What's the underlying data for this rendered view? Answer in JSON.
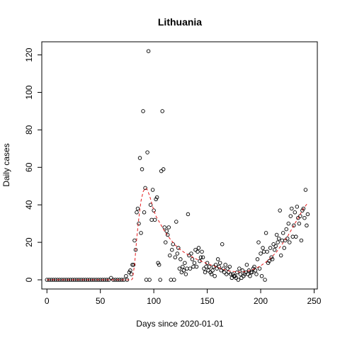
{
  "chart_data": {
    "type": "scatter",
    "title": "Lithuania",
    "xlabel": "Days since 2020-01-01",
    "ylabel": "Daily cases",
    "xlim": [
      -4.8,
      253
    ],
    "ylim": [
      -4.9,
      127
    ],
    "x_ticks": [
      0,
      50,
      100,
      150,
      200,
      250
    ],
    "y_ticks": [
      0,
      20,
      40,
      60,
      80,
      100,
      120
    ],
    "grid": false,
    "legend": "none",
    "series": [
      {
        "type": "scatter",
        "marker": "open-circle",
        "color": "#000000",
        "points": [
          [
            0,
            0
          ],
          [
            2,
            0
          ],
          [
            4,
            0
          ],
          [
            6,
            0
          ],
          [
            8,
            0
          ],
          [
            10,
            0
          ],
          [
            12,
            0
          ],
          [
            14,
            0
          ],
          [
            16,
            0
          ],
          [
            18,
            0
          ],
          [
            20,
            0
          ],
          [
            22,
            0
          ],
          [
            24,
            0
          ],
          [
            26,
            0
          ],
          [
            28,
            0
          ],
          [
            30,
            0
          ],
          [
            32,
            0
          ],
          [
            34,
            0
          ],
          [
            36,
            0
          ],
          [
            38,
            0
          ],
          [
            40,
            0
          ],
          [
            42,
            0
          ],
          [
            44,
            0
          ],
          [
            46,
            0
          ],
          [
            48,
            0
          ],
          [
            50,
            0
          ],
          [
            52,
            0
          ],
          [
            54,
            0
          ],
          [
            56,
            0
          ],
          [
            58,
            0
          ],
          [
            60,
            1
          ],
          [
            62,
            0
          ],
          [
            64,
            0
          ],
          [
            66,
            0
          ],
          [
            68,
            0
          ],
          [
            70,
            0
          ],
          [
            72,
            0
          ],
          [
            74,
            2
          ],
          [
            75,
            0
          ],
          [
            77,
            4
          ],
          [
            78,
            5
          ],
          [
            79,
            3
          ],
          [
            80,
            8
          ],
          [
            81,
            8
          ],
          [
            82,
            21
          ],
          [
            83,
            16
          ],
          [
            84,
            36
          ],
          [
            85,
            38
          ],
          [
            86,
            30
          ],
          [
            87,
            65
          ],
          [
            88,
            25
          ],
          [
            89,
            59
          ],
          [
            90,
            90
          ],
          [
            91,
            36
          ],
          [
            92,
            49
          ],
          [
            93,
            0
          ],
          [
            94,
            68
          ],
          [
            95,
            122
          ],
          [
            96,
            0
          ],
          [
            97,
            40
          ],
          [
            98,
            32
          ],
          [
            99,
            48
          ],
          [
            100,
            37
          ],
          [
            101,
            32
          ],
          [
            102,
            43
          ],
          [
            103,
            44
          ],
          [
            104,
            9
          ],
          [
            105,
            8
          ],
          [
            106,
            0
          ],
          [
            107,
            58
          ],
          [
            108,
            90
          ],
          [
            109,
            59
          ],
          [
            110,
            28
          ],
          [
            111,
            20
          ],
          [
            112,
            26
          ],
          [
            113,
            24
          ],
          [
            114,
            28
          ],
          [
            115,
            13
          ],
          [
            116,
            0
          ],
          [
            117,
            16
          ],
          [
            118,
            19
          ],
          [
            119,
            0
          ],
          [
            120,
            12
          ],
          [
            121,
            31
          ],
          [
            122,
            14
          ],
          [
            123,
            17
          ],
          [
            124,
            6
          ],
          [
            125,
            11
          ],
          [
            126,
            4
          ],
          [
            127,
            7
          ],
          [
            128,
            5
          ],
          [
            129,
            9
          ],
          [
            130,
            3
          ],
          [
            131,
            6
          ],
          [
            132,
            35
          ],
          [
            133,
            13
          ],
          [
            134,
            6
          ],
          [
            135,
            14
          ],
          [
            136,
            11
          ],
          [
            137,
            7
          ],
          [
            138,
            9
          ],
          [
            139,
            16
          ],
          [
            140,
            7
          ],
          [
            141,
            15
          ],
          [
            142,
            17
          ],
          [
            143,
            10
          ],
          [
            144,
            12
          ],
          [
            145,
            15
          ],
          [
            146,
            12
          ],
          [
            147,
            6
          ],
          [
            148,
            4
          ],
          [
            149,
            7
          ],
          [
            150,
            9
          ],
          [
            151,
            5
          ],
          [
            152,
            7
          ],
          [
            153,
            4
          ],
          [
            154,
            3
          ],
          [
            155,
            5
          ],
          [
            156,
            7
          ],
          [
            157,
            2
          ],
          [
            158,
            8
          ],
          [
            159,
            6
          ],
          [
            160,
            11
          ],
          [
            161,
            7
          ],
          [
            162,
            9
          ],
          [
            163,
            5
          ],
          [
            164,
            19
          ],
          [
            165,
            6
          ],
          [
            166,
            4
          ],
          [
            167,
            8
          ],
          [
            168,
            3
          ],
          [
            169,
            6
          ],
          [
            170,
            4
          ],
          [
            171,
            7
          ],
          [
            172,
            3
          ],
          [
            173,
            1
          ],
          [
            174,
            3
          ],
          [
            175,
            2
          ],
          [
            176,
            2
          ],
          [
            177,
            1
          ],
          [
            178,
            4
          ],
          [
            179,
            0
          ],
          [
            180,
            6
          ],
          [
            181,
            3
          ],
          [
            182,
            1
          ],
          [
            183,
            5
          ],
          [
            184,
            2
          ],
          [
            185,
            3
          ],
          [
            186,
            4
          ],
          [
            187,
            8
          ],
          [
            188,
            3
          ],
          [
            189,
            5
          ],
          [
            190,
            2
          ],
          [
            191,
            4
          ],
          [
            192,
            4
          ],
          [
            193,
            6
          ],
          [
            194,
            7
          ],
          [
            195,
            5
          ],
          [
            196,
            3
          ],
          [
            197,
            11
          ],
          [
            198,
            20
          ],
          [
            199,
            6
          ],
          [
            200,
            14
          ],
          [
            201,
            2
          ],
          [
            202,
            17
          ],
          [
            203,
            15
          ],
          [
            204,
            0
          ],
          [
            205,
            25
          ],
          [
            206,
            15
          ],
          [
            207,
            9
          ],
          [
            208,
            10
          ],
          [
            209,
            17
          ],
          [
            210,
            12
          ],
          [
            211,
            11
          ],
          [
            212,
            19
          ],
          [
            213,
            16
          ],
          [
            214,
            18
          ],
          [
            215,
            24
          ],
          [
            216,
            20
          ],
          [
            217,
            22
          ],
          [
            218,
            37
          ],
          [
            219,
            13
          ],
          [
            220,
            21
          ],
          [
            221,
            25
          ],
          [
            222,
            17
          ],
          [
            223,
            21
          ],
          [
            224,
            27
          ],
          [
            225,
            22
          ],
          [
            226,
            30
          ],
          [
            227,
            20
          ],
          [
            228,
            34
          ],
          [
            229,
            38
          ],
          [
            230,
            23
          ],
          [
            231,
            29
          ],
          [
            232,
            36
          ],
          [
            233,
            23
          ],
          [
            234,
            39
          ],
          [
            235,
            33
          ],
          [
            236,
            30
          ],
          [
            237,
            34
          ],
          [
            238,
            21
          ],
          [
            239,
            37
          ],
          [
            240,
            38
          ],
          [
            241,
            33
          ],
          [
            242,
            48
          ],
          [
            243,
            29
          ],
          [
            244,
            35
          ]
        ]
      },
      {
        "type": "line",
        "style": "dashed",
        "color": "#e41a1c",
        "points": [
          [
            0,
            0
          ],
          [
            20,
            0
          ],
          [
            40,
            0
          ],
          [
            60,
            0
          ],
          [
            79,
            0
          ],
          [
            80,
            0.5
          ],
          [
            82,
            8
          ],
          [
            84,
            22
          ],
          [
            86,
            33
          ],
          [
            88,
            42
          ],
          [
            90,
            47
          ],
          [
            92,
            49
          ],
          [
            94,
            48
          ],
          [
            96,
            45
          ],
          [
            98,
            41
          ],
          [
            100,
            37
          ],
          [
            102,
            34
          ],
          [
            104,
            32
          ],
          [
            106,
            30
          ],
          [
            108,
            28
          ],
          [
            110,
            26
          ],
          [
            115,
            22
          ],
          [
            120,
            18.5
          ],
          [
            125,
            16
          ],
          [
            130,
            14
          ],
          [
            135,
            12.5
          ],
          [
            140,
            11
          ],
          [
            145,
            9.8
          ],
          [
            150,
            8.6
          ],
          [
            155,
            7.6
          ],
          [
            160,
            6.6
          ],
          [
            165,
            5.6
          ],
          [
            170,
            4.8
          ],
          [
            175,
            4.4
          ],
          [
            180,
            4.2
          ],
          [
            185,
            4.3
          ],
          [
            190,
            5
          ],
          [
            195,
            6
          ],
          [
            200,
            7.5
          ],
          [
            205,
            9.5
          ],
          [
            210,
            12
          ],
          [
            215,
            15
          ],
          [
            220,
            19
          ],
          [
            225,
            23
          ],
          [
            230,
            28
          ],
          [
            235,
            33
          ],
          [
            240,
            38
          ],
          [
            244,
            41
          ]
        ]
      }
    ]
  }
}
